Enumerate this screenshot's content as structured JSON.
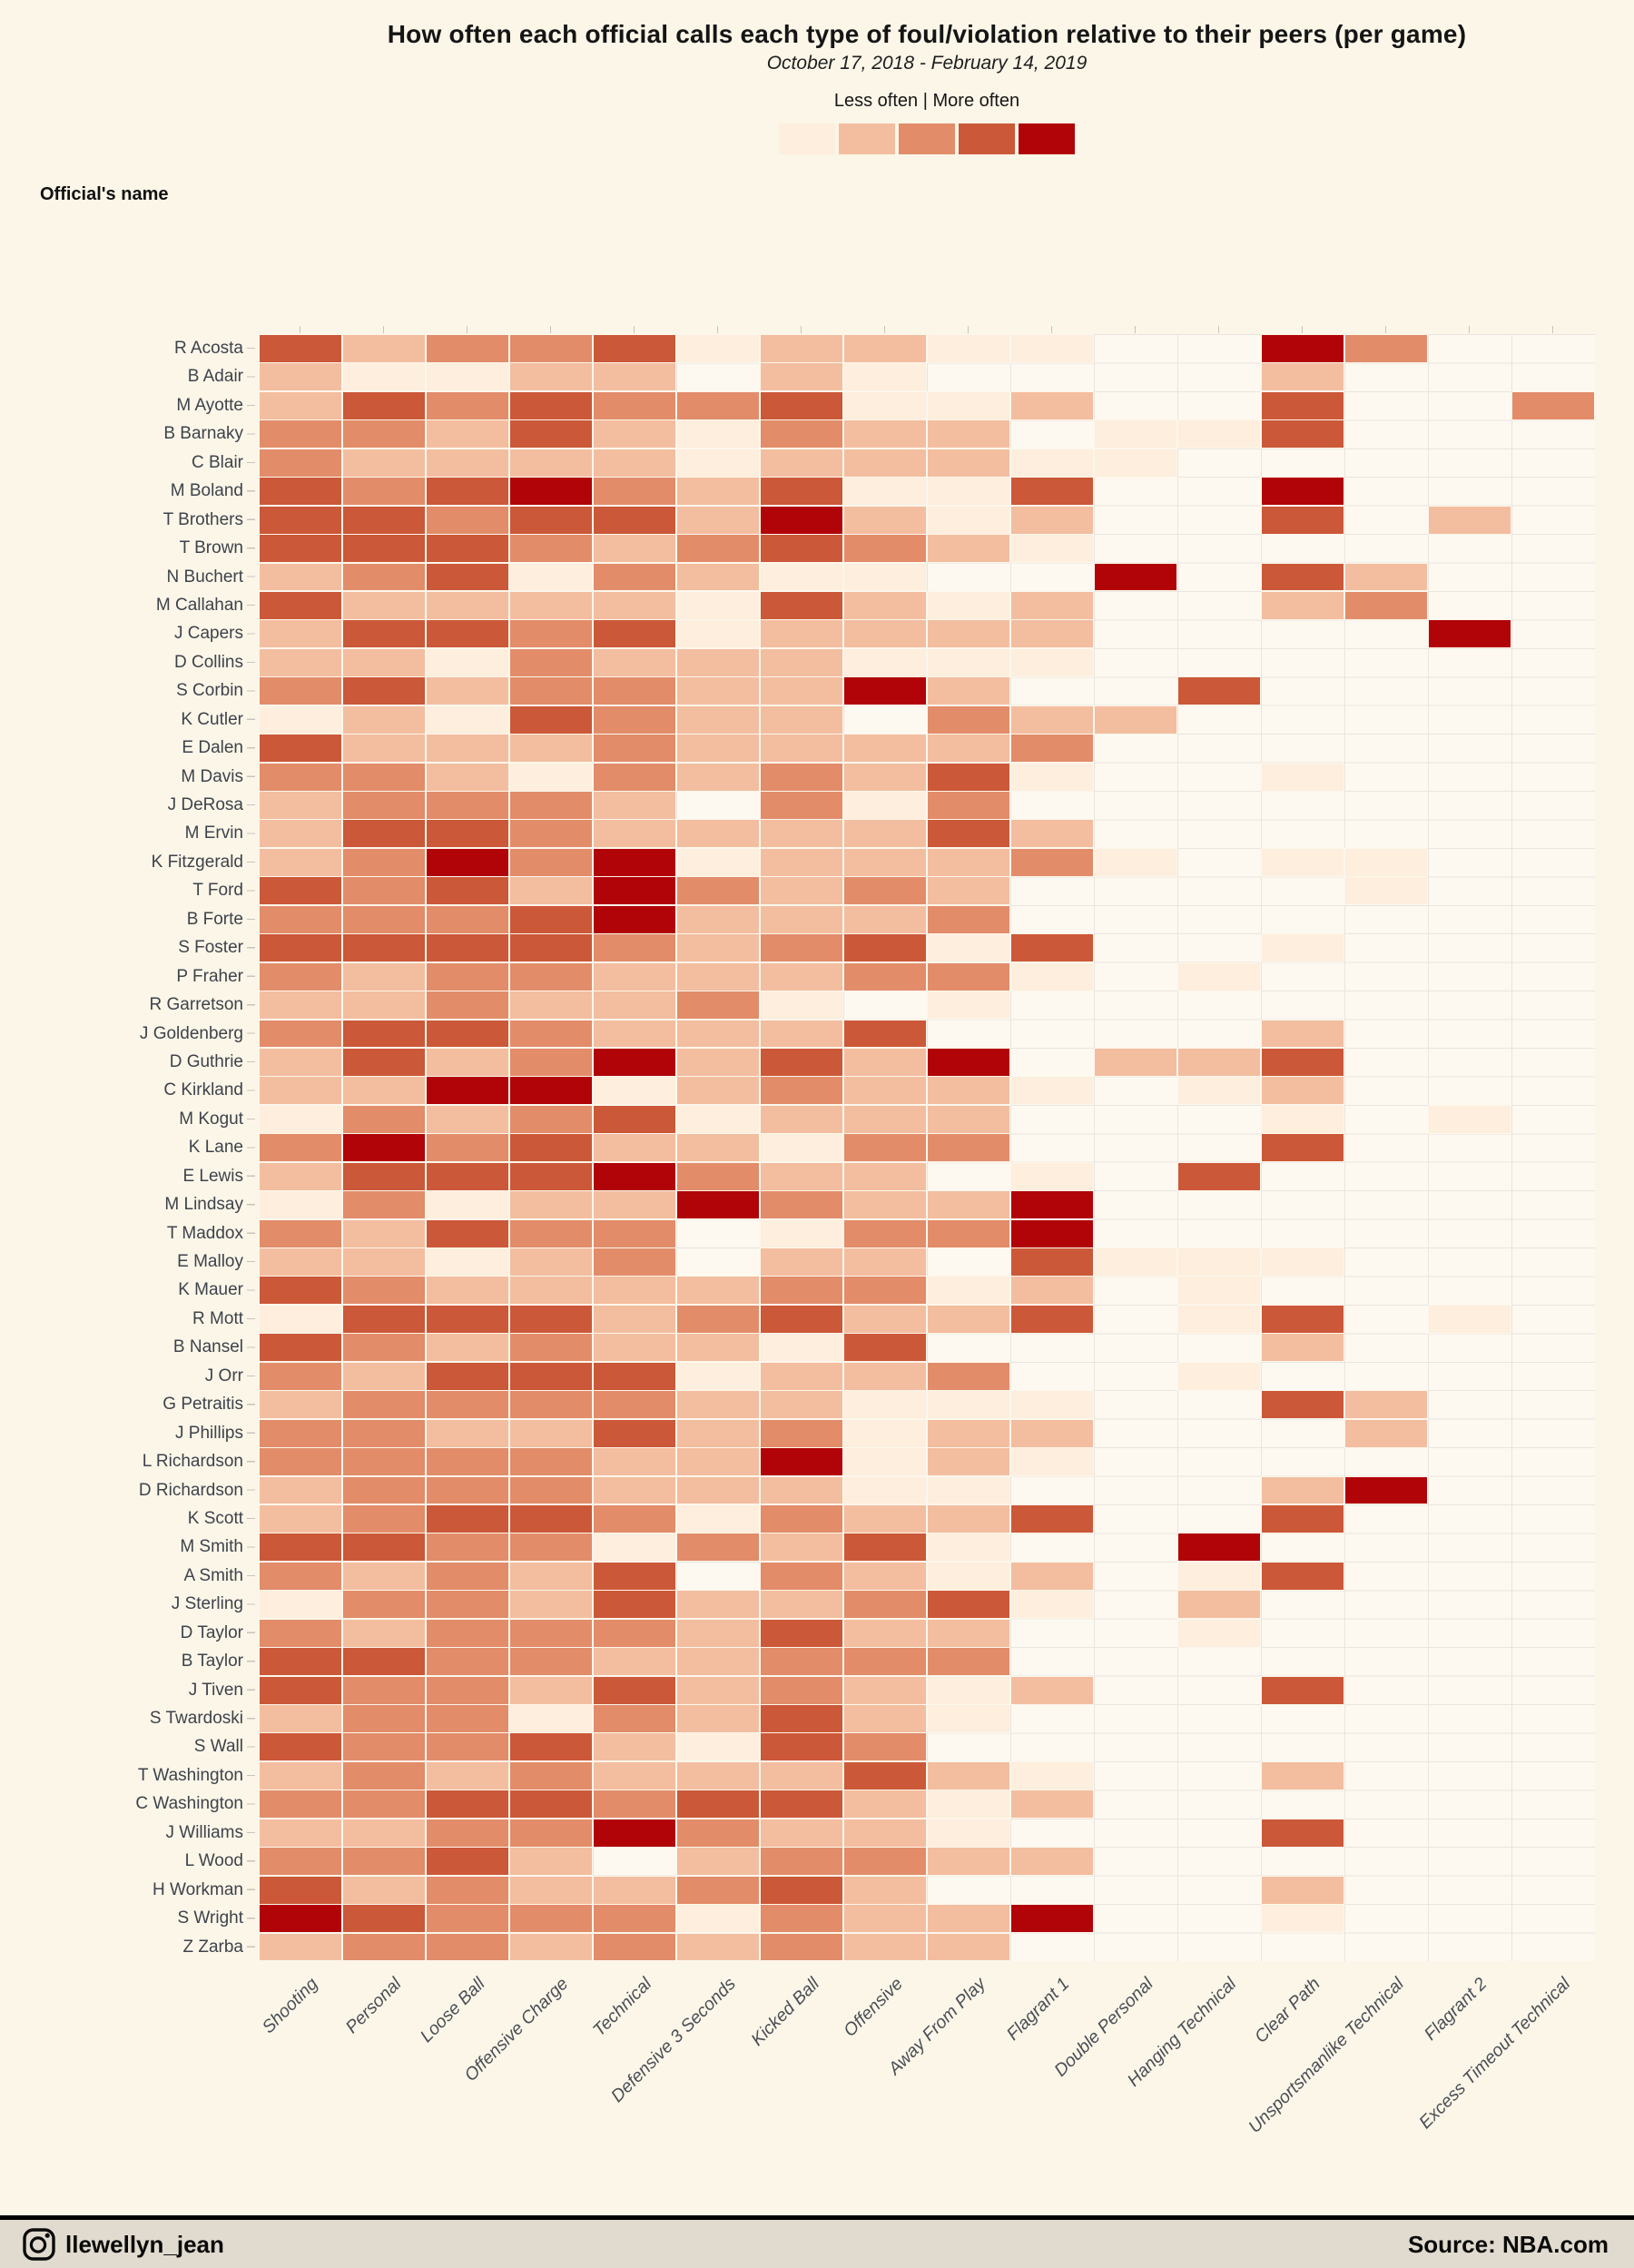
{
  "title": "How often each official calls each type of foul/violation relative to their peers (per game)",
  "subtitle": "October 17, 2018 - February 14, 2019",
  "legend": {
    "less": "Less often",
    "separator": "|",
    "more": "More often"
  },
  "y_axis_title": "Official's name",
  "footer": {
    "handle": "llewellyn_jean",
    "source": "Source: NBA.com"
  },
  "chart_data": {
    "type": "heatmap",
    "x_categories": [
      "Shooting",
      "Personal",
      "Loose Ball",
      "Offensive Charge",
      "Technical",
      "Defensive 3 Seconds",
      "Kicked Ball",
      "Offensive",
      "Away From Play",
      "Flagrant 1",
      "Double Personal",
      "Hanging Technical",
      "Clear Path",
      "Unsportsmanlike Technical",
      "Flagrant 2",
      "Excess Timeout Technical"
    ],
    "y_categories": [
      "R Acosta",
      "B Adair",
      "M Ayotte",
      "B Barnaky",
      "C Blair",
      "M Boland",
      "T Brothers",
      "T Brown",
      "N Buchert",
      "M Callahan",
      "J Capers",
      "D Collins",
      "S Corbin",
      "K Cutler",
      "E Dalen",
      "M Davis",
      "J DeRosa",
      "M Ervin",
      "K Fitzgerald",
      "T Ford",
      "B Forte",
      "S Foster",
      "P Fraher",
      "R Garretson",
      "J Goldenberg",
      "D Guthrie",
      "C Kirkland",
      "M Kogut",
      "K Lane",
      "E Lewis",
      "M Lindsay",
      "T Maddox",
      "E Malloy",
      "K Mauer",
      "R Mott",
      "B Nansel",
      "J Orr",
      "G Petraitis",
      "J Phillips",
      "L Richardson",
      "D Richardson",
      "K Scott",
      "M Smith",
      "A Smith",
      "J Sterling",
      "D Taylor",
      "B Taylor",
      "J Tiven",
      "S Twardoski",
      "S Wall",
      "T Washington",
      "C Washington",
      "J Williams",
      "L Wood",
      "H Workman",
      "S Wright",
      "Z Zarba"
    ],
    "value_meaning": "0 = no calls recorded (blank cell); 1-5 = relative call frequency bin from least (1, lightest) to most (5, darkest)",
    "values": [
      [
        4,
        2,
        3,
        3,
        4,
        1,
        2,
        2,
        1,
        1,
        0,
        0,
        5,
        3,
        0,
        0
      ],
      [
        2,
        1,
        1,
        2,
        2,
        0,
        2,
        1,
        0,
        0,
        0,
        0,
        2,
        0,
        0,
        0
      ],
      [
        2,
        4,
        3,
        4,
        3,
        3,
        4,
        1,
        1,
        2,
        0,
        0,
        4,
        0,
        0,
        3
      ],
      [
        3,
        3,
        2,
        4,
        2,
        1,
        3,
        2,
        2,
        0,
        1,
        1,
        4,
        0,
        0,
        0
      ],
      [
        3,
        2,
        2,
        2,
        2,
        1,
        2,
        2,
        2,
        1,
        1,
        0,
        0,
        0,
        0,
        0
      ],
      [
        4,
        3,
        4,
        5,
        3,
        2,
        4,
        1,
        1,
        4,
        0,
        0,
        5,
        0,
        0,
        0
      ],
      [
        4,
        4,
        3,
        4,
        4,
        2,
        5,
        2,
        1,
        2,
        0,
        0,
        4,
        0,
        2,
        0
      ],
      [
        4,
        4,
        4,
        3,
        2,
        3,
        4,
        3,
        2,
        1,
        0,
        0,
        0,
        0,
        0,
        0
      ],
      [
        2,
        3,
        4,
        1,
        3,
        2,
        1,
        1,
        0,
        0,
        5,
        0,
        4,
        2,
        0,
        0
      ],
      [
        4,
        2,
        2,
        2,
        2,
        1,
        4,
        2,
        1,
        2,
        0,
        0,
        2,
        3,
        0,
        0
      ],
      [
        2,
        4,
        4,
        3,
        4,
        1,
        2,
        2,
        2,
        2,
        0,
        0,
        0,
        0,
        5,
        0
      ],
      [
        2,
        2,
        1,
        3,
        2,
        2,
        2,
        1,
        1,
        1,
        0,
        0,
        0,
        0,
        0,
        0
      ],
      [
        3,
        4,
        2,
        3,
        3,
        2,
        2,
        5,
        2,
        0,
        0,
        4,
        0,
        0,
        0,
        0
      ],
      [
        1,
        2,
        1,
        4,
        3,
        2,
        2,
        0,
        3,
        2,
        2,
        0,
        0,
        0,
        0,
        0
      ],
      [
        4,
        2,
        2,
        2,
        3,
        2,
        2,
        2,
        2,
        3,
        0,
        0,
        0,
        0,
        0,
        0
      ],
      [
        3,
        3,
        2,
        1,
        3,
        2,
        3,
        2,
        4,
        1,
        0,
        0,
        1,
        0,
        0,
        0
      ],
      [
        2,
        3,
        3,
        3,
        2,
        0,
        3,
        1,
        3,
        0,
        0,
        0,
        0,
        0,
        0,
        0
      ],
      [
        2,
        4,
        4,
        3,
        2,
        2,
        2,
        2,
        4,
        2,
        0,
        0,
        0,
        0,
        0,
        0
      ],
      [
        2,
        3,
        5,
        3,
        5,
        1,
        2,
        2,
        2,
        3,
        1,
        0,
        1,
        1,
        0,
        0
      ],
      [
        4,
        3,
        4,
        2,
        5,
        3,
        2,
        3,
        2,
        0,
        0,
        0,
        0,
        1,
        0,
        0
      ],
      [
        3,
        3,
        3,
        4,
        5,
        2,
        2,
        2,
        3,
        0,
        0,
        0,
        0,
        0,
        0,
        0
      ],
      [
        4,
        4,
        4,
        4,
        3,
        2,
        3,
        4,
        1,
        4,
        0,
        0,
        1,
        0,
        0,
        0
      ],
      [
        3,
        2,
        3,
        3,
        2,
        2,
        2,
        3,
        3,
        1,
        0,
        1,
        0,
        0,
        0,
        0
      ],
      [
        2,
        2,
        3,
        2,
        2,
        3,
        1,
        0,
        1,
        0,
        0,
        0,
        0,
        0,
        0,
        0
      ],
      [
        3,
        4,
        4,
        3,
        2,
        2,
        2,
        4,
        0,
        0,
        0,
        0,
        2,
        0,
        0,
        0
      ],
      [
        2,
        4,
        2,
        3,
        5,
        2,
        4,
        2,
        5,
        0,
        2,
        2,
        4,
        0,
        0,
        0
      ],
      [
        2,
        2,
        5,
        5,
        1,
        2,
        3,
        2,
        2,
        1,
        0,
        1,
        2,
        0,
        0,
        0
      ],
      [
        1,
        3,
        2,
        3,
        4,
        1,
        2,
        2,
        2,
        0,
        0,
        0,
        1,
        0,
        1,
        0
      ],
      [
        3,
        5,
        3,
        4,
        2,
        2,
        1,
        3,
        3,
        0,
        0,
        0,
        4,
        0,
        0,
        0
      ],
      [
        2,
        4,
        4,
        4,
        5,
        3,
        2,
        2,
        0,
        1,
        0,
        4,
        0,
        0,
        0,
        0
      ],
      [
        1,
        3,
        1,
        2,
        2,
        5,
        3,
        2,
        2,
        5,
        0,
        0,
        0,
        0,
        0,
        0
      ],
      [
        3,
        2,
        4,
        3,
        3,
        0,
        1,
        3,
        3,
        5,
        0,
        0,
        0,
        0,
        0,
        0
      ],
      [
        2,
        2,
        1,
        2,
        3,
        0,
        2,
        2,
        0,
        4,
        1,
        1,
        1,
        0,
        0,
        0
      ],
      [
        4,
        3,
        2,
        2,
        2,
        2,
        3,
        3,
        1,
        2,
        0,
        1,
        0,
        0,
        0,
        0
      ],
      [
        1,
        4,
        4,
        4,
        2,
        3,
        4,
        2,
        2,
        4,
        0,
        1,
        4,
        0,
        1,
        0
      ],
      [
        4,
        3,
        2,
        3,
        2,
        2,
        1,
        4,
        0,
        0,
        0,
        0,
        2,
        0,
        0,
        0
      ],
      [
        3,
        2,
        4,
        4,
        4,
        1,
        2,
        2,
        3,
        0,
        0,
        1,
        0,
        0,
        0,
        0
      ],
      [
        2,
        3,
        3,
        3,
        3,
        2,
        2,
        1,
        1,
        1,
        0,
        0,
        4,
        2,
        0,
        0
      ],
      [
        3,
        3,
        2,
        2,
        4,
        2,
        3,
        1,
        2,
        2,
        0,
        0,
        0,
        2,
        0,
        0
      ],
      [
        3,
        3,
        3,
        3,
        2,
        2,
        5,
        1,
        2,
        1,
        0,
        0,
        0,
        0,
        0,
        0
      ],
      [
        2,
        3,
        3,
        3,
        2,
        2,
        2,
        1,
        1,
        0,
        0,
        0,
        2,
        5,
        0,
        0
      ],
      [
        2,
        3,
        4,
        4,
        3,
        1,
        3,
        2,
        2,
        4,
        0,
        0,
        4,
        0,
        0,
        0
      ],
      [
        4,
        4,
        3,
        3,
        1,
        3,
        2,
        4,
        1,
        0,
        0,
        5,
        0,
        0,
        0,
        0
      ],
      [
        3,
        2,
        3,
        2,
        4,
        0,
        3,
        2,
        1,
        2,
        0,
        1,
        4,
        0,
        0,
        0
      ],
      [
        1,
        3,
        3,
        2,
        4,
        2,
        2,
        3,
        4,
        1,
        0,
        2,
        0,
        0,
        0,
        0
      ],
      [
        3,
        2,
        3,
        3,
        3,
        2,
        4,
        2,
        2,
        0,
        0,
        1,
        0,
        0,
        0,
        0
      ],
      [
        4,
        4,
        3,
        3,
        2,
        2,
        3,
        3,
        3,
        0,
        0,
        0,
        0,
        0,
        0,
        0
      ],
      [
        4,
        3,
        3,
        2,
        4,
        2,
        3,
        2,
        1,
        2,
        0,
        0,
        4,
        0,
        0,
        0
      ],
      [
        2,
        3,
        3,
        1,
        3,
        2,
        4,
        2,
        1,
        0,
        0,
        0,
        0,
        0,
        0,
        0
      ],
      [
        4,
        3,
        3,
        4,
        2,
        1,
        4,
        3,
        0,
        0,
        0,
        0,
        0,
        0,
        0,
        0
      ],
      [
        2,
        3,
        2,
        3,
        2,
        2,
        2,
        4,
        2,
        1,
        0,
        0,
        2,
        0,
        0,
        0
      ],
      [
        3,
        3,
        4,
        4,
        3,
        4,
        4,
        2,
        1,
        2,
        0,
        0,
        0,
        0,
        0,
        0
      ],
      [
        2,
        2,
        3,
        3,
        5,
        3,
        2,
        2,
        1,
        0,
        0,
        0,
        4,
        0,
        0,
        0
      ],
      [
        3,
        3,
        4,
        2,
        0,
        2,
        3,
        3,
        2,
        2,
        0,
        0,
        0,
        0,
        0,
        0
      ],
      [
        4,
        2,
        3,
        2,
        2,
        3,
        4,
        2,
        0,
        0,
        0,
        0,
        2,
        0,
        0,
        0
      ],
      [
        5,
        4,
        3,
        3,
        3,
        1,
        3,
        2,
        2,
        5,
        0,
        0,
        1,
        0,
        0,
        0
      ],
      [
        2,
        3,
        3,
        2,
        3,
        2,
        3,
        2,
        2,
        0,
        0,
        0,
        0,
        0,
        0,
        0
      ]
    ],
    "colors": {
      "scale": [
        "#fdeedd",
        "#f3bd9f",
        "#e28c6a",
        "#cb5838",
        "#b10408"
      ],
      "empty_cell": "#fdf9f0",
      "gridline": "#e9e5df",
      "page_background": "#fbf6e8",
      "footer_background": "#e0dbce",
      "tick": "#c7c4bd"
    },
    "layout": {
      "legend_position": "top-center",
      "x_label_rotation_deg": 45,
      "grid": true
    }
  }
}
